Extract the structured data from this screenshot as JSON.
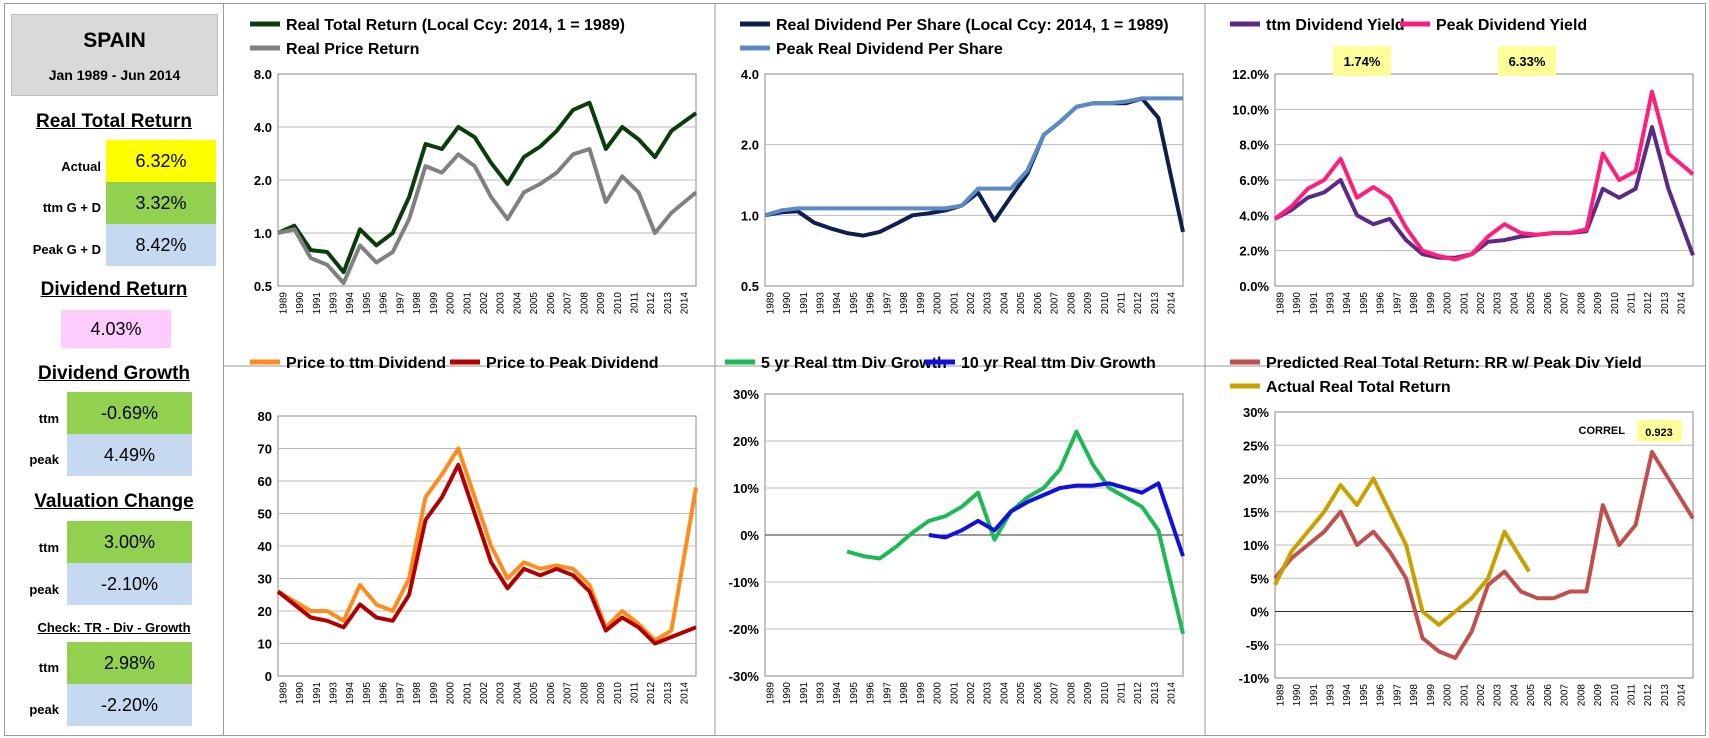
{
  "sidebar": {
    "country": "SPAIN",
    "period": "Jan 1989 - Jun 2014",
    "real_total_return": {
      "heading": "Real Total Return",
      "actual_label": "Actual",
      "actual": "6.32%",
      "ttm_label": "ttm  G + D",
      "ttm": "3.32%",
      "peak_label": "Peak  G + D",
      "peak": "8.42%"
    },
    "dividend_return": {
      "heading": "Dividend Return",
      "value": "4.03%"
    },
    "dividend_growth": {
      "heading": "Dividend Growth",
      "ttm_label": "ttm",
      "ttm": "-0.69%",
      "peak_label": "peak",
      "peak": "4.49%"
    },
    "valuation_change": {
      "heading": "Valuation Change",
      "ttm_label": "ttm",
      "ttm": "3.00%",
      "peak_label": "peak",
      "peak": "-2.10%"
    },
    "check": {
      "heading": "Check: TR - Div - Growth",
      "ttm_label": "ttm",
      "ttm": "2.98%",
      "peak_label": "peak",
      "peak": "-2.20%"
    }
  },
  "x_ticks": [
    "1989",
    "1990",
    "1991",
    "1993",
    "1994",
    "1995",
    "1996",
    "1997",
    "1998",
    "1999",
    "2000",
    "2001",
    "2002",
    "2003",
    "2004",
    "2005",
    "2006",
    "2007",
    "2008",
    "2009",
    "2010",
    "2011",
    "2012",
    "2013",
    "2014"
  ],
  "colors": {
    "dark_green": "#0b3d0b",
    "gray": "#808080",
    "navy": "#0d1f4f",
    "steel_blue": "#5b8ac6",
    "purple": "#5b2a86",
    "pink": "#ff1f7a",
    "orange": "#ff8c1a",
    "dark_red": "#b00000",
    "green": "#1db954",
    "blue": "#1010e0",
    "brick": "#c0504d",
    "gold": "#c9a000",
    "badge": "#ffff99"
  },
  "chart_data": [
    {
      "type": "line",
      "scale": "log",
      "ylim": [
        0.5,
        8.0
      ],
      "yticks": [
        "8.0",
        "4.0",
        "2.0",
        "1.0",
        "0.5"
      ],
      "x": [
        1989,
        1990,
        1991,
        1992,
        1993,
        1994,
        1995,
        1996,
        1997,
        1998,
        1999,
        2000,
        2001,
        2002,
        2003,
        2004,
        2005,
        2006,
        2007,
        2008,
        2009,
        2010,
        2011,
        2012,
        2013,
        2014.5
      ],
      "series": [
        {
          "name": "Real Total Return (Local Ccy: 2014, 1 = 1989)",
          "values": [
            1.0,
            1.1,
            0.8,
            0.78,
            0.6,
            1.05,
            0.85,
            1.0,
            1.6,
            3.2,
            3.0,
            4.0,
            3.5,
            2.5,
            1.9,
            2.7,
            3.1,
            3.8,
            5.0,
            5.5,
            3.0,
            4.0,
            3.4,
            2.7,
            3.8,
            4.8
          ]
        },
        {
          "name": "Real Price Return",
          "values": [
            1.0,
            1.05,
            0.72,
            0.66,
            0.52,
            0.85,
            0.68,
            0.78,
            1.2,
            2.4,
            2.2,
            2.8,
            2.4,
            1.6,
            1.2,
            1.7,
            1.9,
            2.2,
            2.8,
            3.0,
            1.5,
            2.1,
            1.7,
            1.0,
            1.3,
            1.7
          ]
        }
      ]
    },
    {
      "type": "line",
      "scale": "log",
      "ylim": [
        0.5,
        4.0
      ],
      "yticks": [
        "4.0",
        "2.0",
        "1.0",
        "0.5"
      ],
      "x": [
        1989,
        1990,
        1991,
        1992,
        1993,
        1994,
        1995,
        1996,
        1997,
        1998,
        1999,
        2000,
        2001,
        2002,
        2003,
        2004,
        2005,
        2006,
        2007,
        2008,
        2009,
        2010,
        2011,
        2012,
        2013,
        2014.5
      ],
      "series": [
        {
          "name": "Real Dividend Per Share (Local Ccy: 2014, 1 = 1989)",
          "values": [
            1.0,
            1.03,
            1.04,
            0.93,
            0.88,
            0.84,
            0.82,
            0.85,
            0.92,
            1.0,
            1.02,
            1.05,
            1.1,
            1.25,
            0.95,
            1.2,
            1.5,
            2.2,
            2.5,
            2.9,
            3.0,
            3.0,
            3.0,
            3.15,
            2.6,
            0.85
          ]
        },
        {
          "name": "Peak Real Dividend Per Share",
          "values": [
            1.0,
            1.05,
            1.07,
            1.07,
            1.07,
            1.07,
            1.07,
            1.07,
            1.07,
            1.07,
            1.07,
            1.07,
            1.1,
            1.3,
            1.3,
            1.3,
            1.55,
            2.2,
            2.5,
            2.9,
            3.0,
            3.0,
            3.05,
            3.15,
            3.15,
            3.15
          ]
        }
      ]
    },
    {
      "type": "line",
      "ylim": [
        0,
        12
      ],
      "yticks": [
        "12.0%",
        "10.0%",
        "8.0%",
        "6.0%",
        "4.0%",
        "2.0%",
        "0.0%"
      ],
      "annotations": [
        {
          "label": "1.74%"
        },
        {
          "label": "6.33%"
        }
      ],
      "x": [
        1989,
        1990,
        1991,
        1992,
        1993,
        1994,
        1995,
        1996,
        1997,
        1998,
        1999,
        2000,
        2001,
        2002,
        2003,
        2004,
        2005,
        2006,
        2007,
        2008,
        2009,
        2010,
        2011,
        2012,
        2013,
        2014.5
      ],
      "series": [
        {
          "name": "ttm Dividend Yield",
          "values": [
            3.8,
            4.3,
            5.0,
            5.3,
            6.0,
            4.0,
            3.5,
            3.8,
            2.6,
            1.8,
            1.6,
            1.6,
            1.8,
            2.5,
            2.6,
            2.8,
            2.9,
            3.0,
            3.0,
            3.1,
            5.5,
            5.0,
            5.5,
            9.0,
            5.5,
            1.74
          ]
        },
        {
          "name": "Peak Dividend Yield",
          "values": [
            3.8,
            4.5,
            5.5,
            6.0,
            7.2,
            5.0,
            5.6,
            5.0,
            3.3,
            2.0,
            1.7,
            1.5,
            1.8,
            2.8,
            3.5,
            3.0,
            2.9,
            3.0,
            3.0,
            3.2,
            7.5,
            6.0,
            6.5,
            11.0,
            7.5,
            6.33
          ]
        }
      ]
    },
    {
      "type": "line",
      "ylim": [
        0,
        80
      ],
      "yticks": [
        "80",
        "70",
        "60",
        "50",
        "40",
        "30",
        "20",
        "10",
        "0"
      ],
      "x": [
        1989,
        1990,
        1991,
        1992,
        1993,
        1994,
        1995,
        1996,
        1997,
        1998,
        1999,
        2000,
        2001,
        2002,
        2003,
        2004,
        2005,
        2006,
        2007,
        2008,
        2009,
        2010,
        2011,
        2012,
        2013,
        2014.5
      ],
      "series": [
        {
          "name": "Price to ttm Dividend",
          "values": [
            26,
            23,
            20,
            20,
            17,
            28,
            22,
            20,
            30,
            55,
            62,
            70,
            55,
            40,
            30,
            35,
            33,
            34,
            33,
            28,
            15,
            20,
            16,
            11,
            14,
            58
          ]
        },
        {
          "name": "Price to Peak Dividend",
          "values": [
            26,
            22,
            18,
            17,
            15,
            22,
            18,
            17,
            25,
            48,
            55,
            65,
            50,
            35,
            27,
            33,
            31,
            33,
            31,
            26,
            14,
            18,
            15,
            10,
            12,
            15
          ]
        }
      ]
    },
    {
      "type": "line",
      "ylim": [
        -30,
        30
      ],
      "yticks": [
        "30%",
        "20%",
        "10%",
        "0%",
        "-10%",
        "-20%",
        "-30%"
      ],
      "series": [
        {
          "name": "5 yr Real ttm Div Growth",
          "x": [
            1994,
            1995,
            1996,
            1997,
            1998,
            1999,
            2000,
            2001,
            2002,
            2003,
            2004,
            2005,
            2006,
            2007,
            2008,
            2009,
            2010,
            2011,
            2012,
            2013,
            2014.5
          ],
          "values": [
            -3.5,
            -4.5,
            -5.0,
            -2.5,
            0.5,
            3.0,
            4.0,
            6.0,
            9.0,
            -1.0,
            5.0,
            8.0,
            10.0,
            14.0,
            22.0,
            15.0,
            10.0,
            8.0,
            6.0,
            1.0,
            -21.0
          ]
        },
        {
          "name": "10 yr Real ttm Div Growth",
          "x": [
            1999,
            2000,
            2001,
            2002,
            2003,
            2004,
            2005,
            2006,
            2007,
            2008,
            2009,
            2010,
            2011,
            2012,
            2013,
            2014.5
          ],
          "values": [
            0.0,
            -0.5,
            1.0,
            3.0,
            1.0,
            5.0,
            7.0,
            8.5,
            10.0,
            10.5,
            10.5,
            11.0,
            10.0,
            9.0,
            11.0,
            -4.5
          ]
        }
      ]
    },
    {
      "type": "line",
      "ylim": [
        -10,
        30
      ],
      "yticks": [
        "30%",
        "25%",
        "20%",
        "15%",
        "10%",
        "5%",
        "0%",
        "-5%",
        "-10%"
      ],
      "annotations": [
        {
          "label": "CORREL",
          "value": "0.923"
        }
      ],
      "series": [
        {
          "name": "Predicted Real Total Return: RR w/ Peak Div Yield",
          "x": [
            1989,
            1990,
            1991,
            1992,
            1993,
            1994,
            1995,
            1996,
            1997,
            1998,
            1999,
            2000,
            2001,
            2002,
            2003,
            2004,
            2005,
            2006,
            2007,
            2008,
            2009,
            2010,
            2011,
            2012,
            2013,
            2014.5
          ],
          "values": [
            5,
            8,
            10,
            12,
            15,
            10,
            12,
            9,
            5,
            -4,
            -6,
            -7,
            -3,
            4,
            6,
            3,
            2,
            2,
            3,
            3,
            16,
            10,
            13,
            24,
            20,
            14
          ]
        },
        {
          "name": "Actual Real Total Return",
          "x": [
            1989,
            1990,
            1991,
            1992,
            1993,
            1994,
            1995,
            1996,
            1997,
            1998,
            1999,
            2000,
            2001,
            2002,
            2003,
            2004,
            2004.5
          ],
          "values": [
            4,
            9,
            12,
            15,
            19,
            16,
            20,
            15,
            10,
            0,
            -2,
            0,
            2,
            5,
            12,
            8,
            6
          ]
        }
      ]
    }
  ]
}
